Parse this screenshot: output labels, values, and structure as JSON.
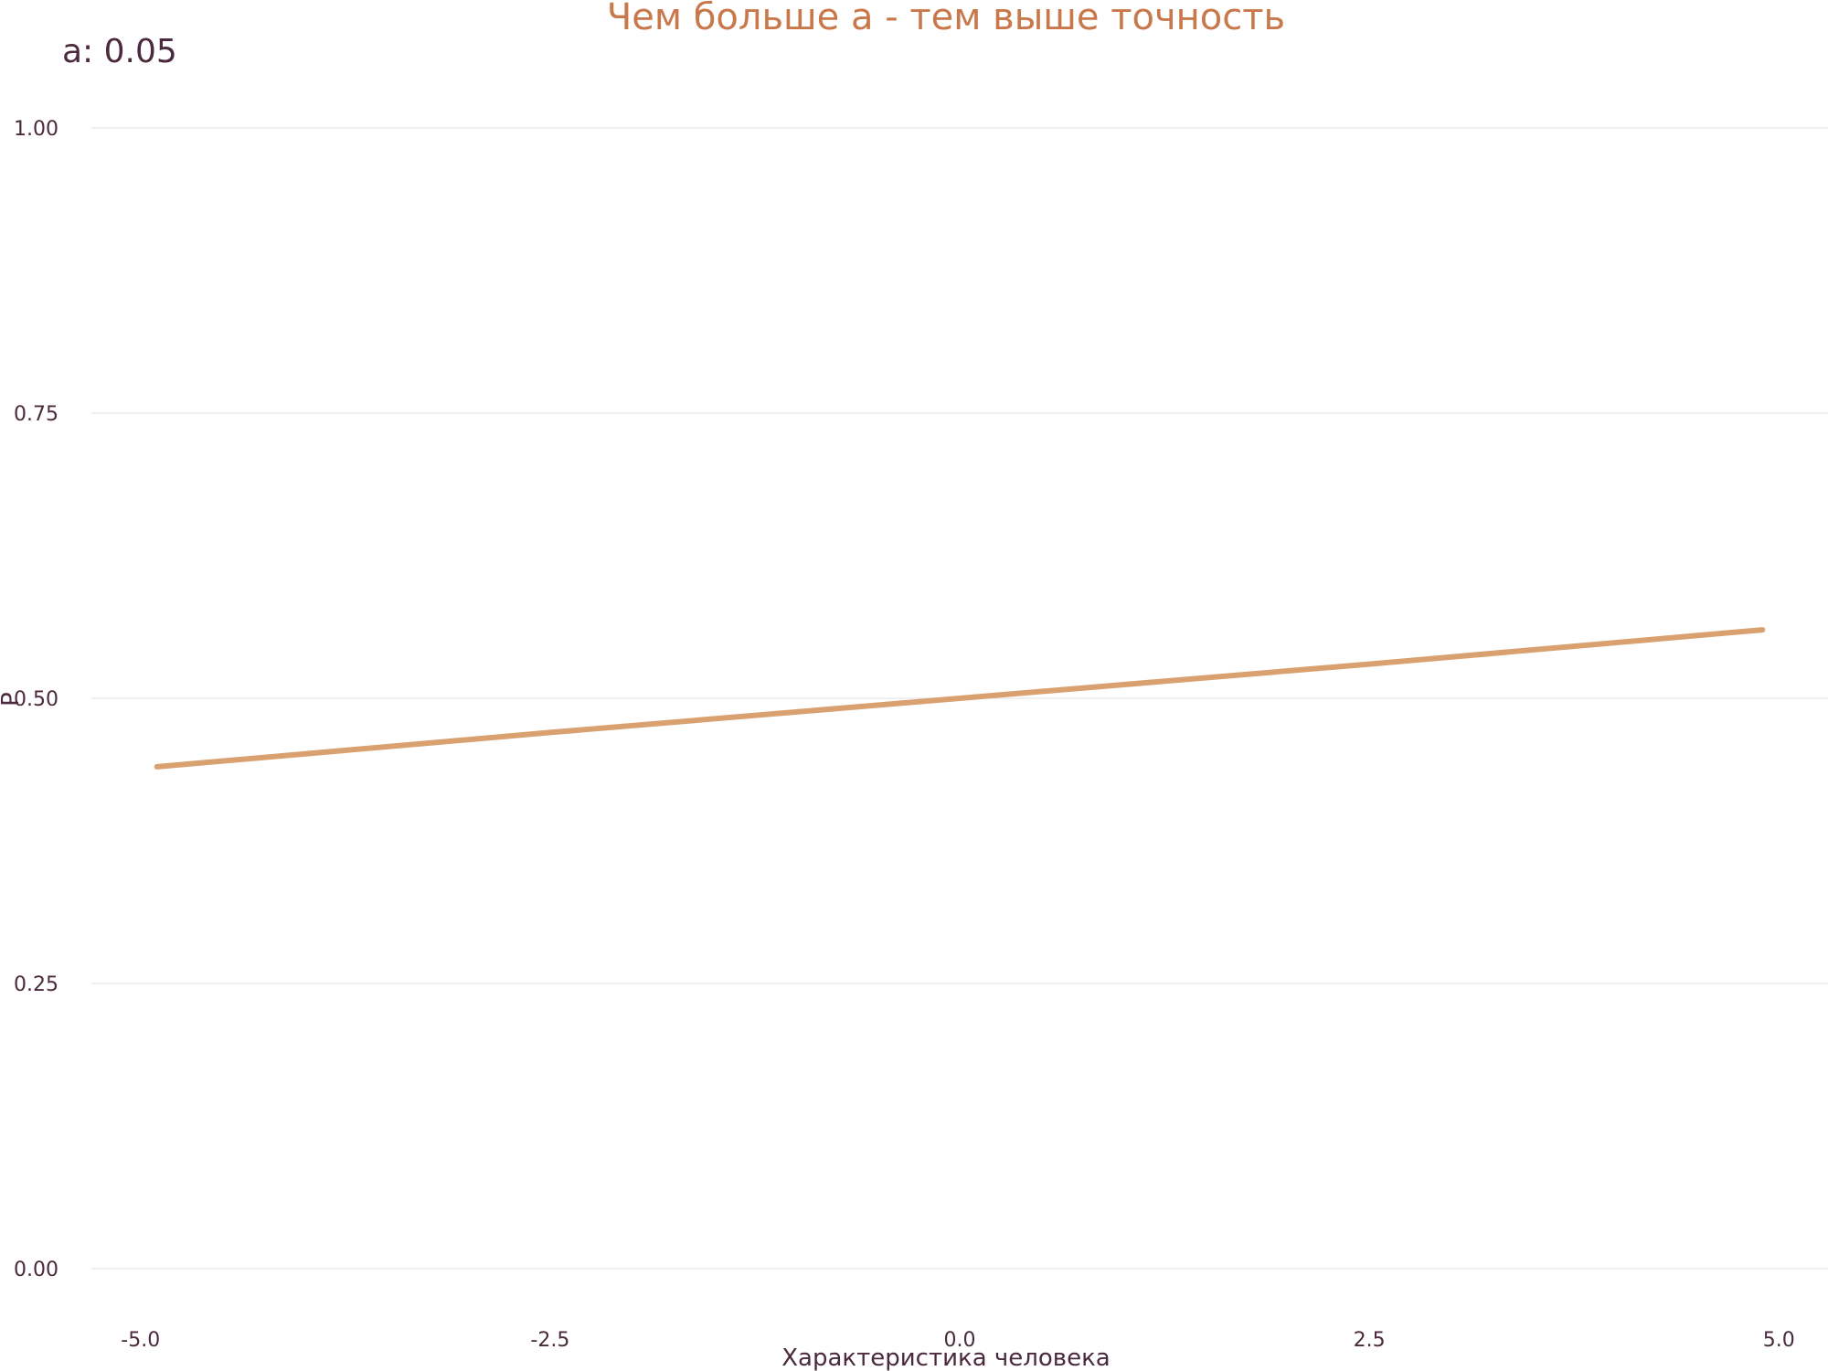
{
  "chart_data": {
    "type": "line",
    "title": "Чем больше a - тем выше точность",
    "param_label": "a: 0.05",
    "xlabel": "Характеристика человека",
    "ylabel": "P",
    "xlim": [
      -5.3,
      5.3
    ],
    "ylim": [
      0,
      1
    ],
    "xticks": [
      -5,
      -2.5,
      0,
      2.5,
      5
    ],
    "xtick_labels": [
      "-5.0",
      "-2.5",
      "0.0",
      "2.5",
      "5.0"
    ],
    "yticks": [
      0,
      0.25,
      0.5,
      0.75,
      1
    ],
    "ytick_labels": [
      "0.00",
      "0.25",
      "0.50",
      "0.75",
      "1.00"
    ],
    "grid": "horizontal",
    "series": [
      {
        "color": "#d9a070",
        "x": [
          -4.9,
          -2.5,
          0,
          2.5,
          4.9
        ],
        "y": [
          0.44,
          0.47,
          0.5,
          0.53,
          0.56
        ]
      }
    ]
  }
}
